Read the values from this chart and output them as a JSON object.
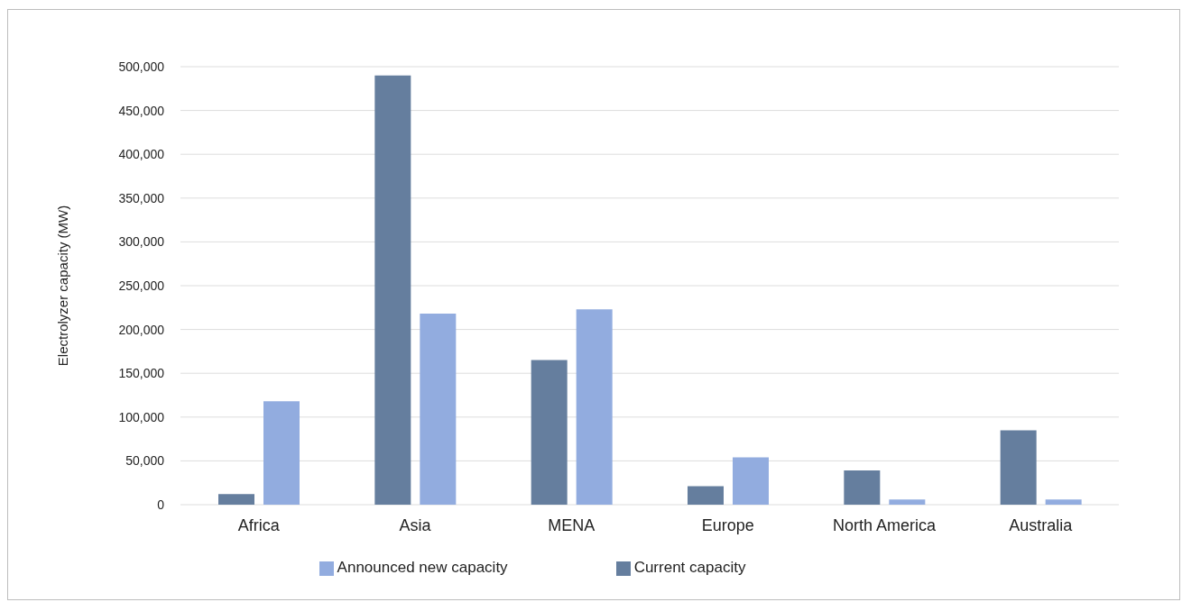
{
  "chart_data": {
    "type": "bar",
    "ylabel": "Electrolyzer capacity (MW)",
    "categories": [
      "Africa",
      "Asia",
      "MENA",
      "Europe",
      "North America",
      "Australia"
    ],
    "series": [
      {
        "name": "Current capacity",
        "color": "#657e9e",
        "values": [
          12000,
          490000,
          165000,
          21000,
          39000,
          85000
        ]
      },
      {
        "name": "Announced new capacity",
        "color": "#92acdf",
        "values": [
          118000,
          218000,
          223000,
          54000,
          6000,
          6000
        ]
      }
    ],
    "ylim": [
      0,
      500000
    ],
    "yticks": [
      0,
      {
        "value": 50000,
        "label": "50,000"
      },
      {
        "value": 100000,
        "label": "100,000"
      },
      {
        "value": 150000,
        "label": "150,000"
      },
      {
        "value": 200000,
        "label": "200,000"
      },
      {
        "value": 250000,
        "label": "250,000"
      },
      {
        "value": 300000,
        "label": "300,000"
      },
      {
        "value": 350000,
        "label": "350,000"
      },
      {
        "value": 400000,
        "label": "400,000"
      },
      {
        "value": 450000,
        "label": "450,000"
      },
      {
        "value": 500000,
        "label": "500,000"
      }
    ],
    "grid": "y",
    "legend": "bottom"
  }
}
